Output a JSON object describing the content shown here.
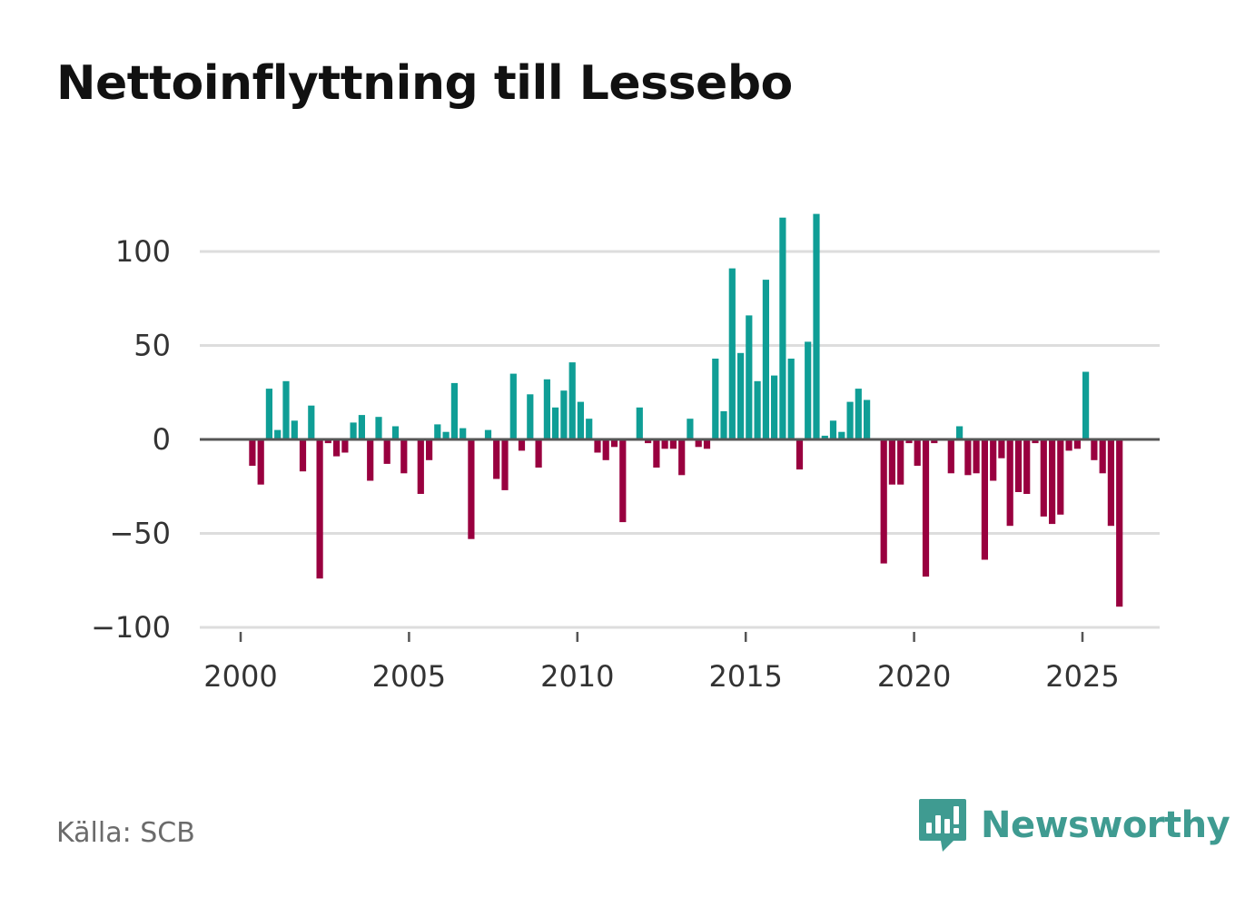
{
  "title": "Nettoinflyttning till Lessebo",
  "source": "Källa: SCB",
  "brand": "Newsworthy",
  "colors": {
    "positive": "#0f9e96",
    "negative": "#99003f",
    "grid": "#dddddd",
    "zero": "#555555",
    "brand": "#3f9b91"
  },
  "chart_data": {
    "type": "bar",
    "title": "Nettoinflyttning till Lessebo",
    "xlabel": "",
    "ylabel": "",
    "ylim": [
      -100,
      120
    ],
    "xlim": [
      1999.5,
      2027.2
    ],
    "yticks": [
      100,
      50,
      0,
      -50,
      -100
    ],
    "ytick_labels": [
      "100",
      "50",
      "0",
      "−50",
      "−100"
    ],
    "xticks": [
      2000,
      2005,
      2010,
      2015,
      2020,
      2025
    ],
    "xtick_labels": [
      "2000",
      "2005",
      "2010",
      "2015",
      "2020",
      "2025"
    ],
    "grid": true,
    "frequency": "quarterly",
    "start": [
      2000,
      1
    ],
    "values": [
      0,
      -14,
      -24,
      27,
      5,
      31,
      10,
      -17,
      18,
      -74,
      -2,
      -9,
      -7,
      9,
      13,
      -22,
      12,
      -13,
      7,
      -18,
      0,
      -29,
      -11,
      8,
      4,
      30,
      6,
      -53,
      0,
      5,
      -21,
      -27,
      35,
      -6,
      24,
      -15,
      32,
      17,
      26,
      41,
      20,
      11,
      -7,
      -11,
      -4,
      -44,
      0,
      17,
      -2,
      -15,
      -5,
      -5,
      -19,
      11,
      -4,
      -5,
      43,
      15,
      91,
      46,
      66,
      31,
      85,
      34,
      118,
      43,
      -16,
      52,
      120,
      2,
      10,
      4,
      20,
      27,
      21,
      0,
      -66,
      -24,
      -24,
      -2,
      -14,
      -73,
      -2,
      0,
      -18,
      7,
      -19,
      -18,
      -64,
      -22,
      -10,
      -46,
      -28,
      -29,
      -2,
      -41,
      -45,
      -40,
      -6,
      -5,
      36,
      -11,
      -18,
      -46,
      -89
    ]
  }
}
